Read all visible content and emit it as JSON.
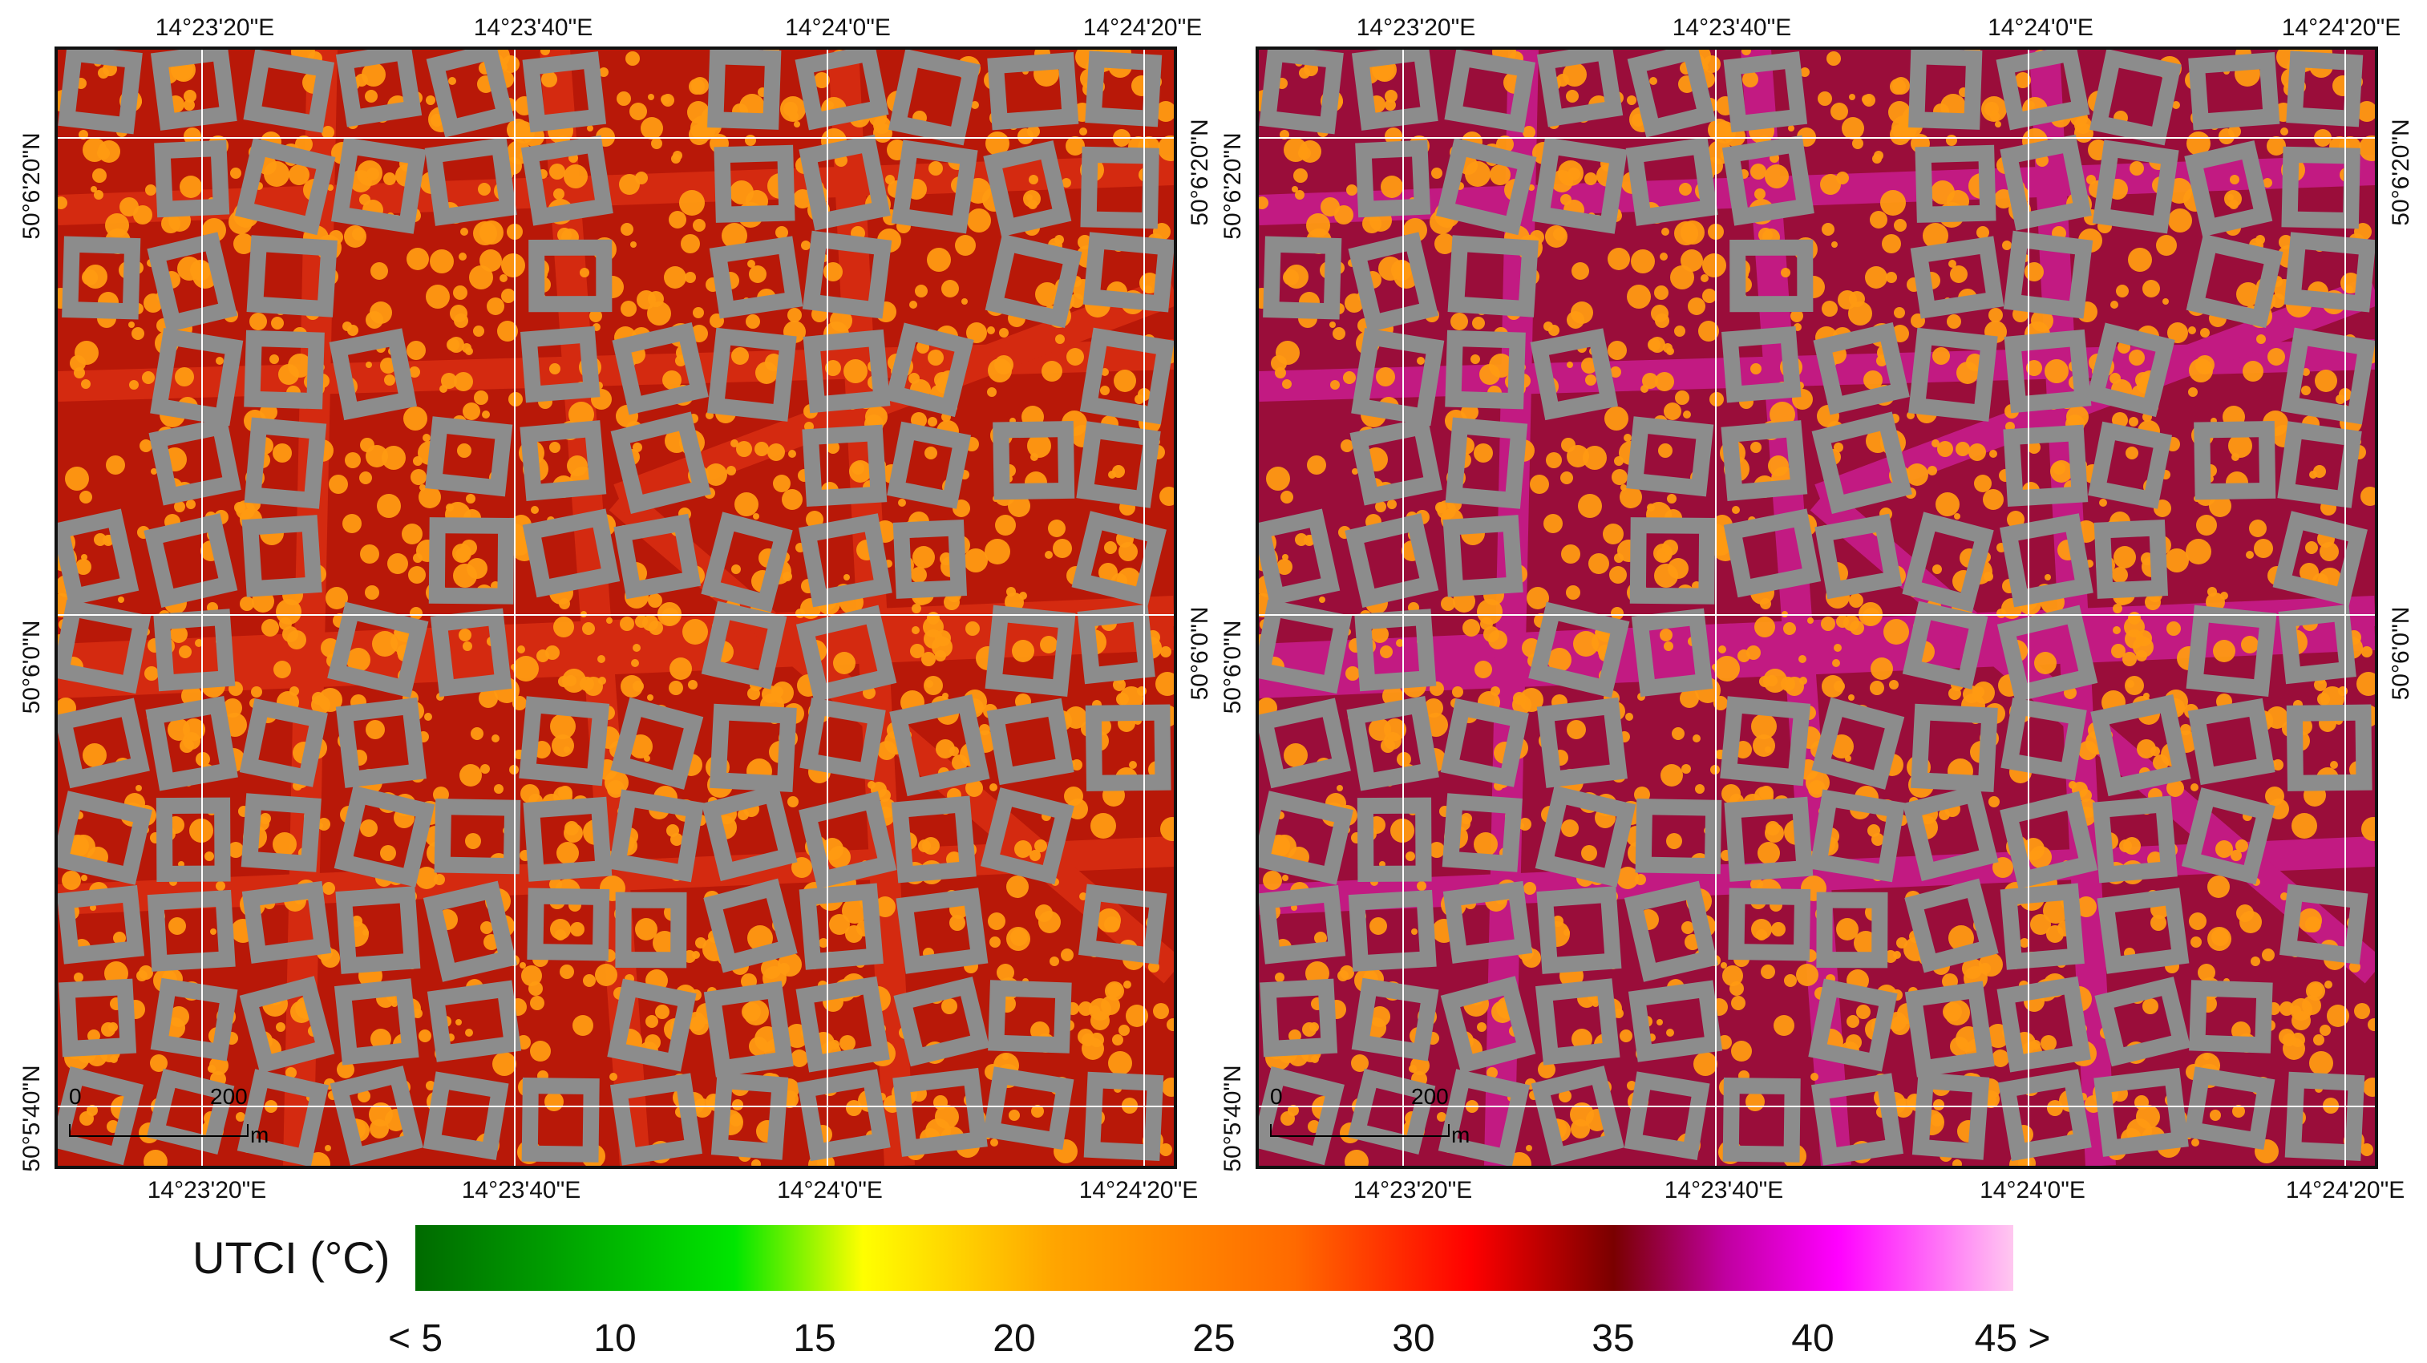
{
  "maps": [
    {
      "id": "left",
      "top_lon_labels": [
        "14°23'20\"E",
        "14°23'40\"E",
        "14°24'0\"E",
        "14°24'20\"E"
      ],
      "bottom_lon_labels": [
        "14°23'20\"E",
        "14°23'40\"E",
        "14°24'0\"E",
        "14°24'20\"E"
      ],
      "left_lat_labels": [
        "50°6'20\"N",
        "50°6'0\"N",
        "50°5'40\"N"
      ],
      "right_lat_labels": [
        "50°6'20\"N",
        "50°6'0\"N"
      ],
      "scale_start": "0",
      "scale_end": "200",
      "scale_unit": "m",
      "palette": {
        "ground": "#b81808",
        "street": "#d42a10",
        "tree": "#ff9a12",
        "building": "#8c8c8c"
      }
    },
    {
      "id": "right",
      "top_lon_labels": [
        "14°23'20\"E",
        "14°23'40\"E",
        "14°24'0\"E",
        "14°24'20\"E"
      ],
      "bottom_lon_labels": [
        "14°23'20\"E",
        "14°23'40\"E",
        "14°24'0\"E",
        "14°24'20\"E"
      ],
      "left_lat_labels": [
        "50°6'20\"N",
        "50°6'0\"N",
        "50°5'40\"N"
      ],
      "right_lat_labels": [
        "50°6'20\"N",
        "50°6'0\"N"
      ],
      "scale_start": "0",
      "scale_end": "200",
      "scale_unit": "m",
      "palette": {
        "ground": "#9a0d3a",
        "street": "#c21a82",
        "tree": "#ff9a12",
        "building": "#8c8c8c"
      }
    }
  ],
  "colorbar": {
    "title": "UTCI (°C)",
    "ticks": [
      "< 5",
      "10",
      "15",
      "20",
      "25",
      "30",
      "35",
      "40",
      "45 >"
    ],
    "colors": [
      "#006a00",
      "#00e600",
      "#ffff00",
      "#ffa500",
      "#ff6a00",
      "#ff0000",
      "#7a0000",
      "#c000a0",
      "#ff00ff",
      "#ffc8f0"
    ]
  }
}
